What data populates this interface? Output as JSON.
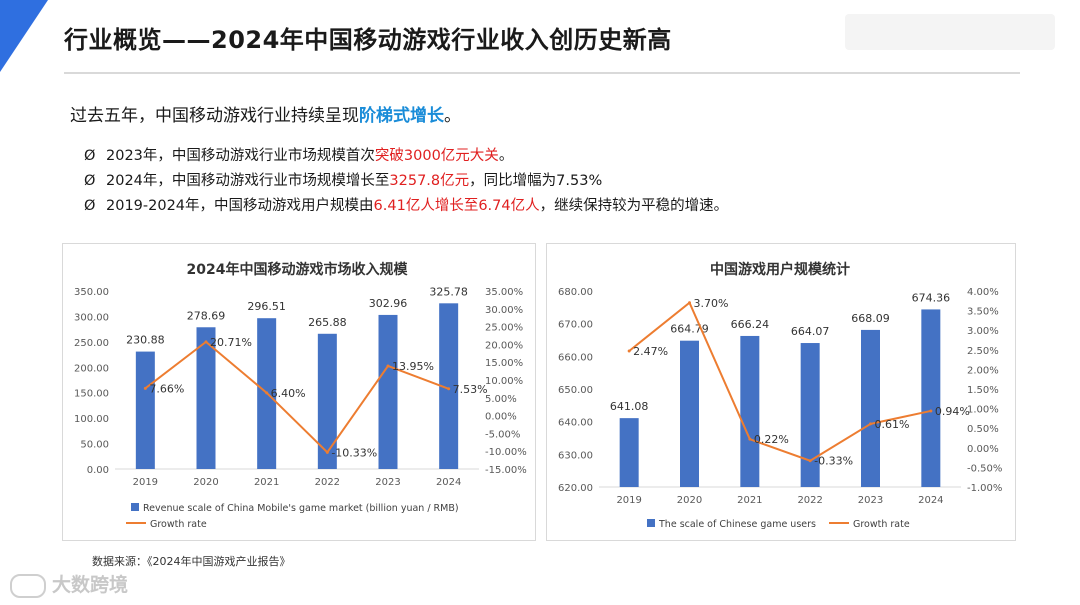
{
  "header": {
    "title": "行业概览——2024年中国移动游戏行业收入创历史新高",
    "accent_color": "#2f6fe0"
  },
  "intro": {
    "text_before": "过去五年，中国移动游戏行业持续呈现",
    "highlight": "阶梯式增长",
    "text_after": "。"
  },
  "bullets": [
    {
      "marker": "Ø",
      "parts": [
        {
          "t": "2023年，中国移动游戏行业市场规模首次",
          "red": false
        },
        {
          "t": "突破3000亿元大关",
          "red": true
        },
        {
          "t": "。",
          "red": false
        }
      ]
    },
    {
      "marker": "Ø",
      "parts": [
        {
          "t": "2024年，中国移动游戏行业市场规模增长至",
          "red": false
        },
        {
          "t": "3257.8亿元",
          "red": true
        },
        {
          "t": "，同比增幅为7.53%",
          "red": false
        }
      ]
    },
    {
      "marker": "Ø",
      "parts": [
        {
          "t": "2019-2024年，中国移动游戏用户规模由",
          "red": false
        },
        {
          "t": "6.41亿人增长至6.74亿人",
          "red": true
        },
        {
          "t": "，继续保持较为平稳的增速。",
          "red": false
        }
      ]
    }
  ],
  "colors": {
    "bar": "#4472c4",
    "line": "#ed7d31",
    "red": "#e02020",
    "highlight": "#1a8cd8"
  },
  "chart_data": [
    {
      "type": "bar",
      "title": "2024年中国移动游戏市场收入规模",
      "categories": [
        "2019",
        "2020",
        "2021",
        "2022",
        "2023",
        "2024"
      ],
      "series": [
        {
          "name": "Revenue scale of China Mobile's game market (billion yuan / RMB)",
          "type": "bar",
          "axis": "left",
          "values": [
            230.88,
            278.69,
            296.51,
            265.88,
            302.96,
            325.78
          ],
          "labels": [
            "230.88",
            "278.69",
            "296.51",
            "265.88",
            "302.96",
            "325.78"
          ]
        },
        {
          "name": "Growth rate",
          "type": "line",
          "axis": "right",
          "values": [
            7.66,
            20.71,
            6.4,
            -10.33,
            13.95,
            7.53
          ],
          "labels": [
            "7.66%",
            "20.71%",
            "6.40%",
            "-10.33%",
            "13.95%",
            "7.53%"
          ]
        }
      ],
      "ylim": [
        0,
        350
      ],
      "yticks": [
        "0.00",
        "50.00",
        "100.00",
        "150.00",
        "200.00",
        "250.00",
        "300.00",
        "350.00"
      ],
      "y2lim": [
        -15,
        35
      ],
      "y2ticks": [
        "-15.00%",
        "-10.00%",
        "-5.00%",
        "0.00%",
        "5.00%",
        "10.00%",
        "15.00%",
        "20.00%",
        "25.00%",
        "30.00%",
        "35.00%"
      ],
      "legend": "bottom"
    },
    {
      "type": "bar",
      "title": "中国游戏用户规模统计",
      "categories": [
        "2019",
        "2020",
        "2021",
        "2022",
        "2023",
        "2024"
      ],
      "series": [
        {
          "name": "The scale of Chinese game users",
          "type": "bar",
          "axis": "left",
          "values": [
            641.08,
            664.79,
            666.24,
            664.07,
            668.09,
            674.36
          ],
          "labels": [
            "641.08",
            "664.79",
            "666.24",
            "664.07",
            "668.09",
            "674.36"
          ]
        },
        {
          "name": "Growth rate",
          "type": "line",
          "axis": "right",
          "values": [
            2.47,
            3.7,
            0.22,
            -0.33,
            0.61,
            0.94
          ],
          "labels": [
            "2.47%",
            "3.70%",
            "0.22%",
            "-0.33%",
            "0.61%",
            "0.94%"
          ]
        }
      ],
      "ylim": [
        620,
        680
      ],
      "yticks": [
        "620.00",
        "630.00",
        "640.00",
        "650.00",
        "660.00",
        "670.00",
        "680.00"
      ],
      "y2lim": [
        -1,
        4
      ],
      "y2ticks": [
        "-1.00%",
        "-0.50%",
        "0.00%",
        "0.50%",
        "1.00%",
        "1.50%",
        "2.00%",
        "2.50%",
        "3.00%",
        "3.50%",
        "4.00%"
      ],
      "legend": "bottom"
    }
  ],
  "source": "数据来源：《2024年中国游戏产业报告》",
  "watermark": "大数跨境"
}
